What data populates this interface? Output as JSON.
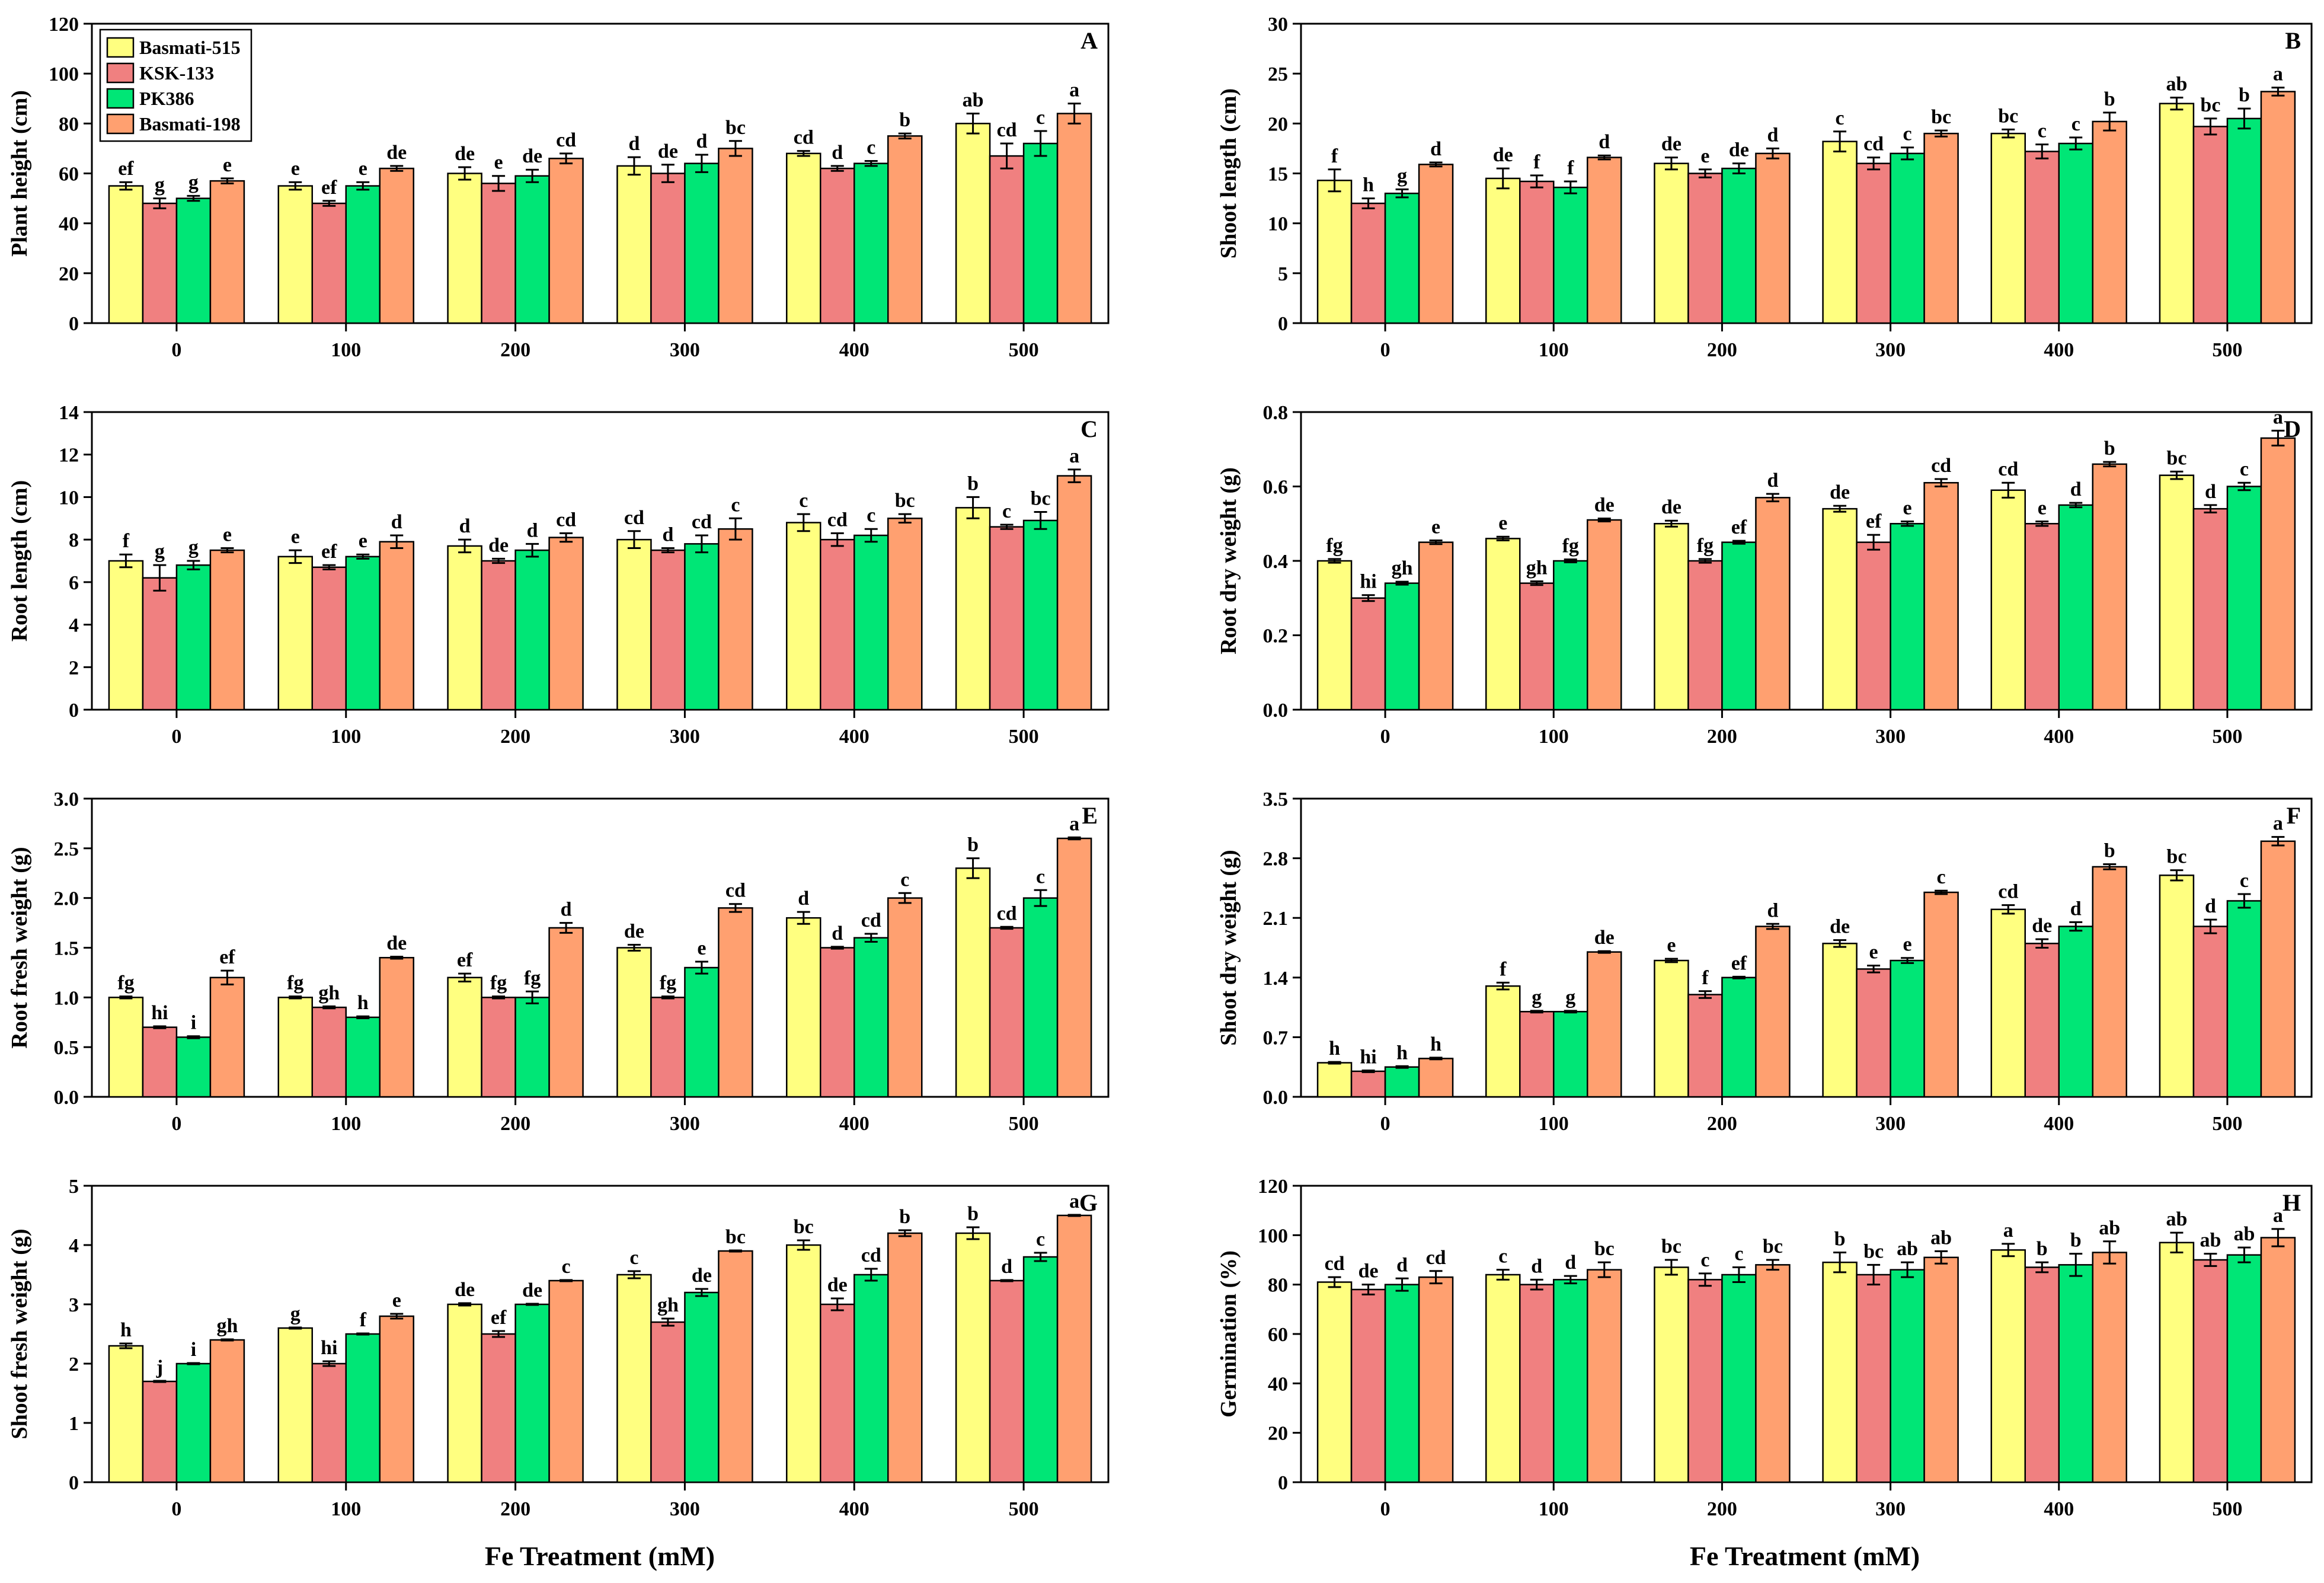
{
  "legend": [
    {
      "name": "Basmati-515",
      "color": "#FFFF80"
    },
    {
      "name": "KSK-133",
      "color": "#F08080"
    },
    {
      "name": "PK386",
      "color": "#00E676"
    },
    {
      "name": "Basmati-198",
      "color": "#FFA070"
    }
  ],
  "x_title": "Fe Treatment (mM)",
  "chart_data": [
    {
      "type": "bar",
      "panel": "A",
      "ylabel": "Plant height (cm)",
      "ylim": [
        0,
        120
      ],
      "yticks": [
        0,
        20,
        40,
        60,
        80,
        100,
        120
      ],
      "categories": [
        "0",
        "100",
        "200",
        "300",
        "400",
        "500"
      ],
      "series": [
        {
          "name": "Basmati-515",
          "values": [
            55,
            55,
            60,
            63,
            68,
            80
          ],
          "errors": [
            1.5,
            1.5,
            2.5,
            3.5,
            1,
            4
          ],
          "letters": [
            "ef",
            "e",
            "de",
            "d",
            "cd",
            "ab"
          ]
        },
        {
          "name": "KSK-133",
          "values": [
            48,
            48,
            56,
            60,
            62,
            67
          ],
          "errors": [
            2,
            1,
            3,
            3.5,
            1,
            5
          ],
          "letters": [
            "g",
            "ef",
            "e",
            "de",
            "d",
            "cd"
          ]
        },
        {
          "name": "PK386",
          "values": [
            50,
            55,
            59,
            64,
            64,
            72
          ],
          "errors": [
            1,
            1.5,
            2.5,
            3.5,
            1,
            5
          ],
          "letters": [
            "g",
            "e",
            "de",
            "d",
            "c",
            "c"
          ]
        },
        {
          "name": "Basmati-198",
          "values": [
            57,
            62,
            66,
            70,
            75,
            84
          ],
          "errors": [
            1,
            1,
            2,
            3,
            1,
            4
          ],
          "letters": [
            "e",
            "de",
            "cd",
            "bc",
            "b",
            "a"
          ]
        }
      ]
    },
    {
      "type": "bar",
      "panel": "B",
      "ylabel": "Shoot length (cm)",
      "ylim": [
        0,
        30
      ],
      "yticks": [
        0,
        5,
        10,
        15,
        20,
        25,
        30
      ],
      "categories": [
        "0",
        "100",
        "200",
        "300",
        "400",
        "500"
      ],
      "series": [
        {
          "name": "Basmati-515",
          "values": [
            14.3,
            14.5,
            16,
            18.2,
            19,
            22
          ],
          "errors": [
            1.1,
            1,
            0.6,
            1,
            0.4,
            0.6
          ],
          "letters": [
            "f",
            "de",
            "de",
            "c",
            "bc",
            "ab"
          ]
        },
        {
          "name": "KSK-133",
          "values": [
            12,
            14.2,
            15,
            16,
            17.2,
            19.7
          ],
          "errors": [
            0.5,
            0.6,
            0.4,
            0.6,
            0.7,
            0.8
          ],
          "letters": [
            "h",
            "f",
            "e",
            "cd",
            "c",
            "bc"
          ]
        },
        {
          "name": "PK386",
          "values": [
            13,
            13.6,
            15.5,
            17,
            18,
            20.5
          ],
          "errors": [
            0.4,
            0.6,
            0.5,
            0.6,
            0.6,
            1
          ],
          "letters": [
            "g",
            "f",
            "de",
            "c",
            "c",
            "b"
          ]
        },
        {
          "name": "Basmati-198",
          "values": [
            15.9,
            16.6,
            17,
            19,
            20.2,
            23.2
          ],
          "errors": [
            0.2,
            0.2,
            0.5,
            0.3,
            0.9,
            0.4
          ],
          "letters": [
            "d",
            "d",
            "d",
            "bc",
            "b",
            "a"
          ]
        }
      ]
    },
    {
      "type": "bar",
      "panel": "C",
      "ylabel": "Root length (cm)",
      "ylim": [
        0,
        14
      ],
      "yticks": [
        0,
        2,
        4,
        6,
        8,
        10,
        12,
        14
      ],
      "categories": [
        "0",
        "100",
        "200",
        "300",
        "400",
        "500"
      ],
      "series": [
        {
          "name": "Basmati-515",
          "values": [
            7,
            7.2,
            7.7,
            8,
            8.8,
            9.5
          ],
          "errors": [
            0.3,
            0.3,
            0.3,
            0.4,
            0.4,
            0.5
          ],
          "letters": [
            "f",
            "e",
            "d",
            "cd",
            "c",
            "b"
          ]
        },
        {
          "name": "KSK-133",
          "values": [
            6.2,
            6.7,
            7,
            7.5,
            8,
            8.6
          ],
          "errors": [
            0.6,
            0.1,
            0.1,
            0.1,
            0.3,
            0.1
          ],
          "letters": [
            "g",
            "ef",
            "de",
            "d",
            "cd",
            "c"
          ]
        },
        {
          "name": "PK386",
          "values": [
            6.8,
            7.2,
            7.5,
            7.8,
            8.2,
            8.9
          ],
          "errors": [
            0.2,
            0.1,
            0.3,
            0.4,
            0.3,
            0.4
          ],
          "letters": [
            "g",
            "e",
            "d",
            "cd",
            "c",
            "bc"
          ]
        },
        {
          "name": "Basmati-198",
          "values": [
            7.5,
            7.9,
            8.1,
            8.5,
            9,
            11
          ],
          "errors": [
            0.1,
            0.3,
            0.2,
            0.5,
            0.2,
            0.3
          ],
          "letters": [
            "e",
            "d",
            "cd",
            "c",
            "bc",
            "a"
          ]
        }
      ]
    },
    {
      "type": "bar",
      "panel": "D",
      "ylabel": "Root dry weight (g)",
      "ylim": [
        0,
        0.8
      ],
      "yticks": [
        "0.0",
        "0.2",
        "0.4",
        "0.6",
        "0.8"
      ],
      "categories": [
        "0",
        "100",
        "200",
        "300",
        "400",
        "500"
      ],
      "series": [
        {
          "name": "Basmati-515",
          "values": [
            0.4,
            0.46,
            0.5,
            0.54,
            0.59,
            0.63
          ],
          "errors": [
            0.005,
            0.005,
            0.008,
            0.008,
            0.02,
            0.01
          ],
          "letters": [
            "fg",
            "e",
            "de",
            "de",
            "cd",
            "bc"
          ]
        },
        {
          "name": "KSK-133",
          "values": [
            0.3,
            0.34,
            0.4,
            0.45,
            0.5,
            0.54
          ],
          "errors": [
            0.008,
            0.005,
            0.005,
            0.02,
            0.006,
            0.01
          ],
          "letters": [
            "hi",
            "gh",
            "fg",
            "ef",
            "e",
            "d"
          ]
        },
        {
          "name": "PK386",
          "values": [
            0.34,
            0.4,
            0.45,
            0.5,
            0.55,
            0.6
          ],
          "errors": [
            0.004,
            0.004,
            0.004,
            0.006,
            0.006,
            0.01
          ],
          "letters": [
            "gh",
            "fg",
            "ef",
            "e",
            "d",
            "c"
          ]
        },
        {
          "name": "Basmati-198",
          "values": [
            0.45,
            0.51,
            0.57,
            0.61,
            0.66,
            0.73
          ],
          "errors": [
            0.005,
            0.004,
            0.01,
            0.01,
            0.006,
            0.02
          ],
          "letters": [
            "e",
            "de",
            "d",
            "cd",
            "b",
            "a"
          ]
        }
      ]
    },
    {
      "type": "bar",
      "panel": "E",
      "ylabel": "Root fresh weight (g)",
      "ylim": [
        0,
        3.0
      ],
      "yticks": [
        "0.0",
        "0.5",
        "1.0",
        "1.5",
        "2.0",
        "2.5",
        "3.0"
      ],
      "categories": [
        "0",
        "100",
        "200",
        "300",
        "400",
        "500"
      ],
      "series": [
        {
          "name": "Basmati-515",
          "values": [
            1.0,
            1.0,
            1.2,
            1.5,
            1.8,
            2.3
          ],
          "errors": [
            0.01,
            0.01,
            0.04,
            0.03,
            0.06,
            0.1
          ],
          "letters": [
            "fg",
            "fg",
            "ef",
            "de",
            "d",
            "b"
          ]
        },
        {
          "name": "KSK-133",
          "values": [
            0.7,
            0.9,
            1.0,
            1.0,
            1.5,
            1.7
          ],
          "errors": [
            0.01,
            0.01,
            0.01,
            0.01,
            0.01,
            0.01
          ],
          "letters": [
            "hi",
            "gh",
            "fg",
            "fg",
            "d",
            "cd"
          ]
        },
        {
          "name": "PK386",
          "values": [
            0.6,
            0.8,
            1.0,
            1.3,
            1.6,
            2.0
          ],
          "errors": [
            0.01,
            0.01,
            0.06,
            0.06,
            0.04,
            0.08
          ],
          "letters": [
            "i",
            "h",
            "fg",
            "e",
            "cd",
            "c"
          ]
        },
        {
          "name": "Basmati-198",
          "values": [
            1.2,
            1.4,
            1.7,
            1.9,
            2.0,
            2.6
          ],
          "errors": [
            0.07,
            0.01,
            0.05,
            0.04,
            0.05,
            0.01
          ],
          "letters": [
            "ef",
            "de",
            "d",
            "cd",
            "c",
            "a"
          ]
        }
      ]
    },
    {
      "type": "bar",
      "panel": "F",
      "ylabel": "Shoot dry weight (g)",
      "ylim": [
        0,
        3.5
      ],
      "yticks": [
        "0.0",
        "0.7",
        "1.4",
        "2.1",
        "2.8",
        "3.5"
      ],
      "categories": [
        "0",
        "100",
        "200",
        "300",
        "400",
        "500"
      ],
      "series": [
        {
          "name": "Basmati-515",
          "values": [
            0.4,
            1.3,
            1.6,
            1.8,
            2.2,
            2.6
          ],
          "errors": [
            0.01,
            0.04,
            0.02,
            0.04,
            0.05,
            0.06
          ],
          "letters": [
            "h",
            "f",
            "e",
            "de",
            "cd",
            "bc"
          ]
        },
        {
          "name": "KSK-133",
          "values": [
            0.3,
            1.0,
            1.2,
            1.5,
            1.8,
            2.0
          ],
          "errors": [
            0.01,
            0.01,
            0.04,
            0.04,
            0.05,
            0.08
          ],
          "letters": [
            "hi",
            "g",
            "f",
            "e",
            "de",
            "d"
          ]
        },
        {
          "name": "PK386",
          "values": [
            0.35,
            1.0,
            1.4,
            1.6,
            2.0,
            2.3
          ],
          "errors": [
            0.01,
            0.01,
            0.01,
            0.03,
            0.05,
            0.08
          ],
          "letters": [
            "h",
            "g",
            "ef",
            "e",
            "d",
            "c"
          ]
        },
        {
          "name": "Basmati-198",
          "values": [
            0.45,
            1.7,
            2.0,
            2.4,
            2.7,
            3.0
          ],
          "errors": [
            0.01,
            0.01,
            0.03,
            0.02,
            0.03,
            0.05
          ],
          "letters": [
            "h",
            "de",
            "d",
            "c",
            "b",
            "a"
          ]
        }
      ]
    },
    {
      "type": "bar",
      "panel": "G",
      "ylabel": "Shoot fresh weight (g)",
      "ylim": [
        0,
        5
      ],
      "yticks": [
        0,
        1,
        2,
        3,
        4,
        5
      ],
      "categories": [
        "0",
        "100",
        "200",
        "300",
        "400",
        "500"
      ],
      "series": [
        {
          "name": "Basmati-515",
          "values": [
            2.3,
            2.6,
            3.0,
            3.5,
            4.0,
            4.2
          ],
          "errors": [
            0.04,
            0.01,
            0.02,
            0.06,
            0.08,
            0.1
          ],
          "letters": [
            "h",
            "g",
            "de",
            "c",
            "bc",
            "b"
          ]
        },
        {
          "name": "KSK-133",
          "values": [
            1.7,
            2.0,
            2.5,
            2.7,
            3.0,
            3.4
          ],
          "errors": [
            0.01,
            0.04,
            0.05,
            0.06,
            0.1,
            0.01
          ],
          "letters": [
            "j",
            "hi",
            "ef",
            "gh",
            "de",
            "d"
          ]
        },
        {
          "name": "PK386",
          "values": [
            2.0,
            2.5,
            3.0,
            3.2,
            3.5,
            3.8
          ],
          "errors": [
            0.01,
            0.01,
            0.01,
            0.06,
            0.1,
            0.07
          ],
          "letters": [
            "i",
            "f",
            "de",
            "de",
            "cd",
            "c"
          ]
        },
        {
          "name": "Basmati-198",
          "values": [
            2.4,
            2.8,
            3.4,
            3.9,
            4.2,
            4.5
          ],
          "errors": [
            0.01,
            0.04,
            0.01,
            0.01,
            0.05,
            0.01
          ],
          "letters": [
            "gh",
            "e",
            "c",
            "bc",
            "b",
            "a"
          ]
        }
      ]
    },
    {
      "type": "bar",
      "panel": "H",
      "ylabel": "Germination (%)",
      "ylim": [
        0,
        120
      ],
      "yticks": [
        0,
        20,
        40,
        60,
        80,
        100,
        120
      ],
      "categories": [
        "0",
        "100",
        "200",
        "300",
        "400",
        "500"
      ],
      "series": [
        {
          "name": "Basmati-515",
          "values": [
            81,
            84,
            87,
            89,
            94,
            97
          ],
          "errors": [
            2,
            2,
            3,
            4,
            2.5,
            4
          ],
          "letters": [
            "cd",
            "c",
            "bc",
            "b",
            "a",
            "ab"
          ]
        },
        {
          "name": "KSK-133",
          "values": [
            78,
            80,
            82,
            84,
            87,
            90
          ],
          "errors": [
            2,
            2,
            2.5,
            4,
            2,
            2.5
          ],
          "letters": [
            "de",
            "d",
            "c",
            "bc",
            "b",
            "ab"
          ]
        },
        {
          "name": "PK386",
          "values": [
            80,
            82,
            84,
            86,
            88,
            92
          ],
          "errors": [
            2.5,
            1.5,
            3,
            3,
            4.5,
            3
          ],
          "letters": [
            "d",
            "d",
            "c",
            "ab",
            "b",
            "ab"
          ]
        },
        {
          "name": "Basmati-198",
          "values": [
            83,
            86,
            88,
            91,
            93,
            99
          ],
          "errors": [
            2.5,
            3,
            2,
            2.5,
            4.5,
            3.5
          ],
          "letters": [
            "cd",
            "bc",
            "bc",
            "ab",
            "ab",
            "a"
          ]
        }
      ]
    }
  ]
}
